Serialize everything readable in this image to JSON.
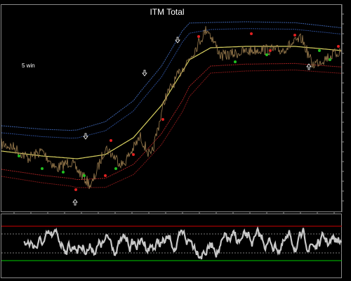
{
  "chart": {
    "title": "ITM Total",
    "annotation": "5 win"
  }
}
